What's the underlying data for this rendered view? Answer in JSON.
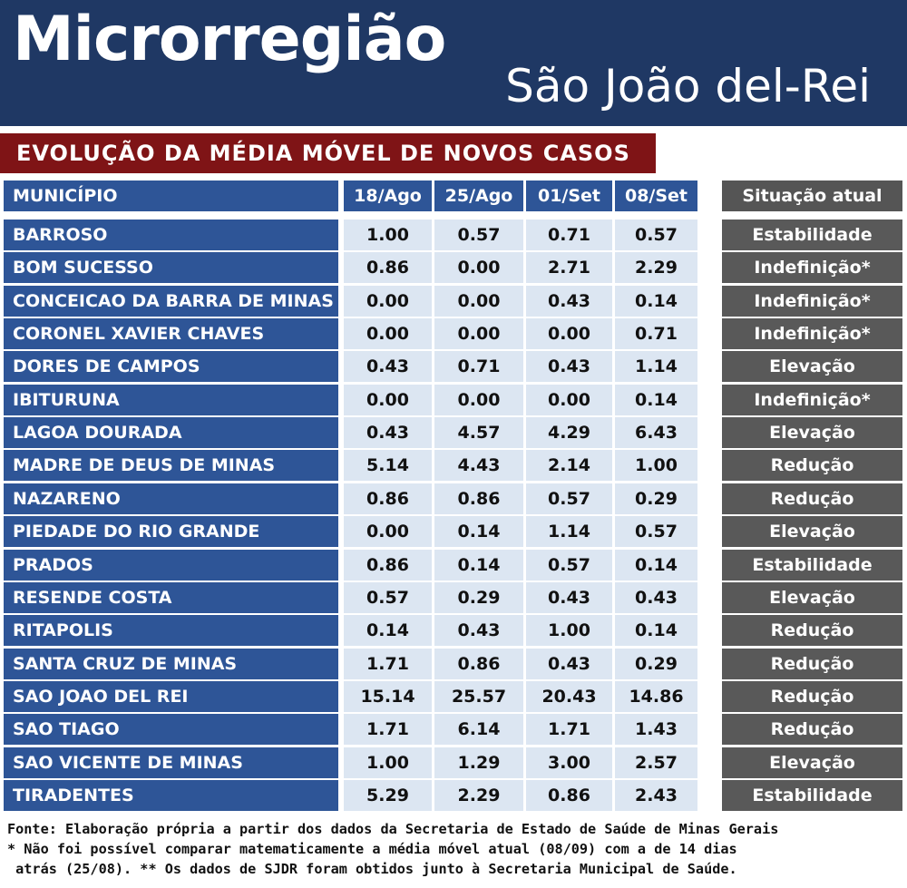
{
  "header": {
    "title": "Microrregião",
    "subtitle": "São João del-Rei"
  },
  "section": {
    "heading": "EVOLUÇÃO DA MÉDIA MÓVEL DE NOVOS CASOS"
  },
  "table": {
    "columns": [
      "MUNICÍPIO",
      "18/Ago",
      "25/Ago",
      "01/Set",
      "08/Set"
    ],
    "status_header": "Situação atual",
    "rows": [
      {
        "municipio": "BARROSO",
        "values": [
          "1.00",
          "0.57",
          "0.71",
          "0.57"
        ],
        "situacao": "Estabilidade"
      },
      {
        "municipio": "BOM SUCESSO",
        "values": [
          "0.86",
          "0.00",
          "2.71",
          "2.29"
        ],
        "situacao": "Indefinição*"
      },
      {
        "municipio": "CONCEICAO DA BARRA DE MINAS",
        "values": [
          "0.00",
          "0.00",
          "0.43",
          "0.14"
        ],
        "situacao": "Indefinição*"
      },
      {
        "municipio": "CORONEL XAVIER CHAVES",
        "values": [
          "0.00",
          "0.00",
          "0.00",
          "0.71"
        ],
        "situacao": "Indefinição*"
      },
      {
        "municipio": "DORES DE CAMPOS",
        "values": [
          "0.43",
          "0.71",
          "0.43",
          "1.14"
        ],
        "situacao": "Elevação"
      },
      {
        "municipio": "IBITURUNA",
        "values": [
          "0.00",
          "0.00",
          "0.00",
          "0.14"
        ],
        "situacao": "Indefinição*"
      },
      {
        "municipio": "LAGOA DOURADA",
        "values": [
          "0.43",
          "4.57",
          "4.29",
          "6.43"
        ],
        "situacao": "Elevação"
      },
      {
        "municipio": "MADRE DE DEUS DE MINAS",
        "values": [
          "5.14",
          "4.43",
          "2.14",
          "1.00"
        ],
        "situacao": "Redução"
      },
      {
        "municipio": "NAZARENO",
        "values": [
          "0.86",
          "0.86",
          "0.57",
          "0.29"
        ],
        "situacao": "Redução"
      },
      {
        "municipio": "PIEDADE DO RIO GRANDE",
        "values": [
          "0.00",
          "0.14",
          "1.14",
          "0.57"
        ],
        "situacao": "Elevação"
      },
      {
        "municipio": "PRADOS",
        "values": [
          "0.86",
          "0.14",
          "0.57",
          "0.14"
        ],
        "situacao": "Estabilidade"
      },
      {
        "municipio": "RESENDE COSTA",
        "values": [
          "0.57",
          "0.29",
          "0.43",
          "0.43"
        ],
        "situacao": "Elevação"
      },
      {
        "municipio": "RITAPOLIS",
        "values": [
          "0.14",
          "0.43",
          "1.00",
          "0.14"
        ],
        "situacao": "Redução"
      },
      {
        "municipio": "SANTA CRUZ DE MINAS",
        "values": [
          "1.71",
          "0.86",
          "0.43",
          "0.29"
        ],
        "situacao": "Redução"
      },
      {
        "municipio": "SAO JOAO DEL REI",
        "values": [
          "15.14",
          "25.57",
          "20.43",
          "14.86"
        ],
        "situacao": "Redução"
      },
      {
        "municipio": "SAO TIAGO",
        "values": [
          "1.71",
          "6.14",
          "1.71",
          "1.43"
        ],
        "situacao": "Redução"
      },
      {
        "municipio": "SAO VICENTE DE MINAS",
        "values": [
          "1.00",
          "1.29",
          "3.00",
          "2.57"
        ],
        "situacao": "Elevação"
      },
      {
        "municipio": "TIRADENTES",
        "values": [
          "5.29",
          "2.29",
          "0.86",
          "2.43"
        ],
        "situacao": "Estabilidade"
      }
    ]
  },
  "footer": {
    "line1": "Fonte: Elaboração própria a partir dos dados da Secretaria de Estado de Saúde de Minas Gerais",
    "line2": "* Não foi possível comparar matematicamente a média móvel atual (08/09) com a de 14 dias",
    "line3": " atrás (25/08). ** Os dados de SJDR foram obtidos junto à Secretaria Municipal de Saúde."
  },
  "colors": {
    "banner": "#1f3864",
    "section_heading": "#7f1416",
    "name_cells": "#2e5597",
    "value_cells": "#dce6f2",
    "status_cells": "#595959"
  }
}
